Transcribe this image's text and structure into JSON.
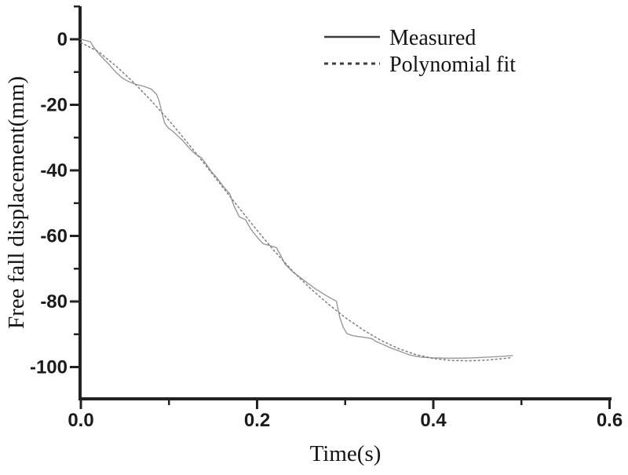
{
  "figure": {
    "background": "#fefefe",
    "axis_color": "#222222",
    "text_color": "#1b1b1b"
  },
  "chart_data": {
    "type": "line",
    "title": "",
    "xlabel": "Time(s)",
    "ylabel": "Free fall displacement(mm)",
    "xlim": [
      0,
      0.6
    ],
    "ylim": [
      -110,
      10
    ],
    "grid": false,
    "legend_position": "top-right",
    "x_major_ticks": [
      0.0,
      0.2,
      0.4,
      0.6
    ],
    "x_major_tick_labels": [
      "0.0",
      "0.2",
      "0.4",
      "0.6"
    ],
    "x_minor_ticks": [
      0.1,
      0.3,
      0.5
    ],
    "y_major_ticks": [
      0,
      -20,
      -40,
      -60,
      -80,
      -100
    ],
    "y_major_tick_labels": [
      "0",
      "-20",
      "-40",
      "-60",
      "-80",
      "-100"
    ],
    "y_minor_ticks": [
      10,
      -10,
      -30,
      -50,
      -70,
      -90
    ],
    "series": [
      {
        "name": "Measured",
        "style": "solid",
        "color": "#949494",
        "width": 1.3,
        "points": [
          [
            0.0,
            0.0
          ],
          [
            0.006,
            -0.4
          ],
          [
            0.011,
            -0.8
          ],
          [
            0.014,
            -2.2
          ],
          [
            0.02,
            -4.3
          ],
          [
            0.028,
            -6.6
          ],
          [
            0.033,
            -8.0
          ],
          [
            0.04,
            -10.1
          ],
          [
            0.048,
            -12.0
          ],
          [
            0.055,
            -13.0
          ],
          [
            0.063,
            -13.8
          ],
          [
            0.072,
            -14.4
          ],
          [
            0.08,
            -15.2
          ],
          [
            0.086,
            -16.8
          ],
          [
            0.089,
            -19.0
          ],
          [
            0.092,
            -22.5
          ],
          [
            0.095,
            -25.5
          ],
          [
            0.099,
            -27.0
          ],
          [
            0.104,
            -28.0
          ],
          [
            0.11,
            -29.5
          ],
          [
            0.116,
            -31.0
          ],
          [
            0.124,
            -33.5
          ],
          [
            0.13,
            -35.0
          ],
          [
            0.137,
            -36.2
          ],
          [
            0.142,
            -38.0
          ],
          [
            0.148,
            -40.3
          ],
          [
            0.155,
            -42.5
          ],
          [
            0.162,
            -45.0
          ],
          [
            0.169,
            -47.2
          ],
          [
            0.174,
            -51.0
          ],
          [
            0.18,
            -54.2
          ],
          [
            0.187,
            -55.1
          ],
          [
            0.193,
            -58.0
          ],
          [
            0.202,
            -61.0
          ],
          [
            0.207,
            -62.4
          ],
          [
            0.215,
            -63.0
          ],
          [
            0.222,
            -63.6
          ],
          [
            0.227,
            -66.0
          ],
          [
            0.232,
            -68.7
          ],
          [
            0.241,
            -71.1
          ],
          [
            0.253,
            -73.5
          ],
          [
            0.265,
            -75.9
          ],
          [
            0.276,
            -77.8
          ],
          [
            0.285,
            -79.2
          ],
          [
            0.29,
            -79.9
          ],
          [
            0.294,
            -85.0
          ],
          [
            0.298,
            -88.0
          ],
          [
            0.302,
            -89.8
          ],
          [
            0.308,
            -90.4
          ],
          [
            0.315,
            -90.7
          ],
          [
            0.323,
            -91.0
          ],
          [
            0.33,
            -91.3
          ],
          [
            0.335,
            -92.2
          ],
          [
            0.342,
            -93.0
          ],
          [
            0.35,
            -94.0
          ],
          [
            0.357,
            -94.7
          ],
          [
            0.365,
            -95.5
          ],
          [
            0.372,
            -96.2
          ],
          [
            0.38,
            -96.7
          ],
          [
            0.387,
            -97.0
          ],
          [
            0.4,
            -97.2
          ],
          [
            0.415,
            -97.3
          ],
          [
            0.43,
            -97.3
          ],
          [
            0.445,
            -97.2
          ],
          [
            0.46,
            -97.0
          ],
          [
            0.475,
            -96.8
          ],
          [
            0.49,
            -96.5
          ]
        ]
      },
      {
        "name": "Polynomial fit",
        "style": "dotted",
        "color": "#7f7f7f",
        "width": 1.5,
        "points": [
          [
            0.0,
            -1.0
          ],
          [
            0.02,
            -3.8
          ],
          [
            0.04,
            -8.2
          ],
          [
            0.06,
            -13.2
          ],
          [
            0.08,
            -18.8
          ],
          [
            0.1,
            -24.8
          ],
          [
            0.12,
            -31.2
          ],
          [
            0.14,
            -37.9
          ],
          [
            0.16,
            -44.8
          ],
          [
            0.18,
            -51.6
          ],
          [
            0.2,
            -58.3
          ],
          [
            0.22,
            -64.7
          ],
          [
            0.24,
            -70.6
          ],
          [
            0.26,
            -75.9
          ],
          [
            0.28,
            -80.6
          ],
          [
            0.3,
            -84.9
          ],
          [
            0.32,
            -88.6
          ],
          [
            0.34,
            -91.8
          ],
          [
            0.36,
            -94.3
          ],
          [
            0.38,
            -96.2
          ],
          [
            0.4,
            -97.4
          ],
          [
            0.42,
            -98.0
          ],
          [
            0.44,
            -98.1
          ],
          [
            0.46,
            -97.9
          ],
          [
            0.48,
            -97.4
          ],
          [
            0.49,
            -97.1
          ]
        ]
      }
    ]
  },
  "legend": {
    "items": [
      {
        "label": "Measured",
        "line_style": "solid"
      },
      {
        "label": "Polynomial fit",
        "line_style": "dotted"
      }
    ],
    "sample_color": "#3d3d3d"
  }
}
